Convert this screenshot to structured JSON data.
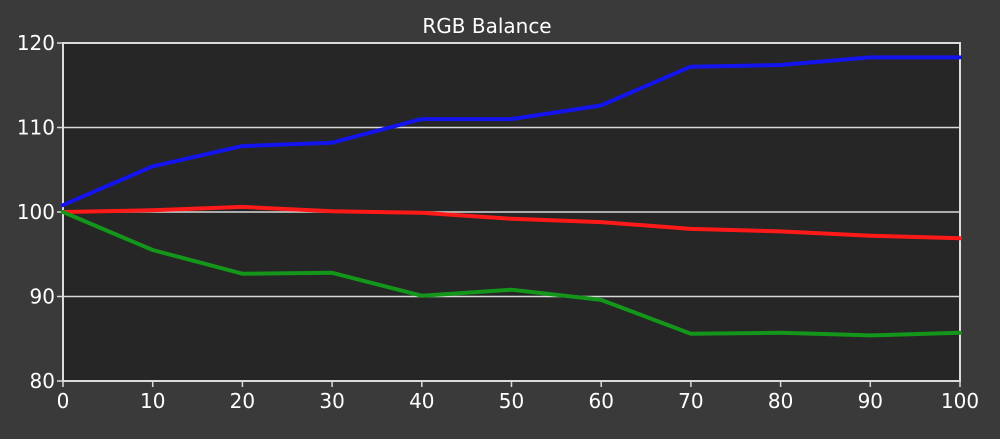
{
  "chart_data": {
    "type": "line",
    "title": "RGB Balance",
    "xlabel": "",
    "ylabel": "",
    "xlim": [
      0,
      100
    ],
    "ylim": [
      80,
      120
    ],
    "x": [
      0,
      10,
      20,
      30,
      40,
      50,
      60,
      70,
      80,
      90,
      100
    ],
    "xticks": [
      "0",
      "10",
      "20",
      "30",
      "40",
      "50",
      "60",
      "70",
      "80",
      "90",
      "100"
    ],
    "yticks": [
      "80",
      "90",
      "100",
      "110",
      "120"
    ],
    "grid": "horizontal",
    "series": [
      {
        "color": "#ff1a1a",
        "values": [
          100,
          100.2,
          100.6,
          100.1,
          99.9,
          99.2,
          98.8,
          98.0,
          97.7,
          97.2,
          96.9
        ]
      },
      {
        "color": "#13961a",
        "values": [
          100,
          95.5,
          92.7,
          92.8,
          90.1,
          90.8,
          89.6,
          85.6,
          85.7,
          85.4,
          85.7
        ]
      },
      {
        "color": "#1414ee",
        "values": [
          100.8,
          105.4,
          107.8,
          108.2,
          111.0,
          111.0,
          112.6,
          117.2,
          117.4,
          118.3,
          118.3
        ]
      }
    ],
    "colors": {
      "background": "#3a3a3a",
      "plot_background": "#262626",
      "grid": "#d9d9d9",
      "axis": "#dcdcdc",
      "text": "#ffffff"
    }
  }
}
